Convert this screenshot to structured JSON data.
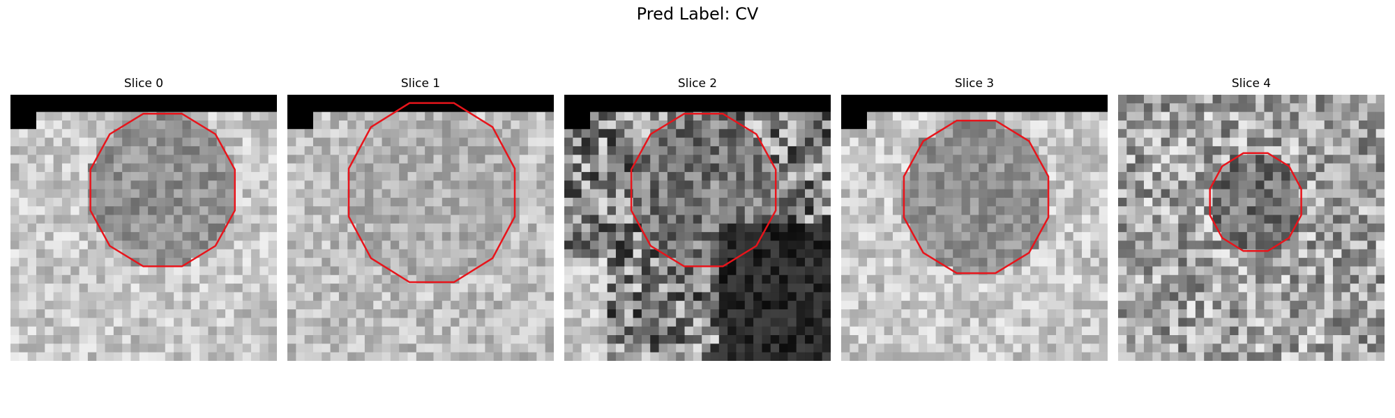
{
  "figure": {
    "title": "Pred Label: CV"
  },
  "panels": [
    {
      "title": "Slice 0",
      "seed": 11,
      "style": "bright_dark_center",
      "black_corner": true,
      "contour": "large"
    },
    {
      "title": "Slice 1",
      "seed": 23,
      "style": "gray_uniform",
      "black_corner": true,
      "contour": "xlarge"
    },
    {
      "title": "Slice 2",
      "seed": 37,
      "style": "dark_contrast",
      "black_corner": true,
      "contour": "large"
    },
    {
      "title": "Slice 3",
      "seed": 41,
      "style": "bright_dark_center",
      "black_corner": true,
      "contour": "large"
    },
    {
      "title": "Slice 4",
      "seed": 53,
      "style": "noisy_dark_center",
      "black_corner": false,
      "contour": "small"
    }
  ],
  "colors": {
    "contour": "#e8141b",
    "background": "#ffffff"
  }
}
